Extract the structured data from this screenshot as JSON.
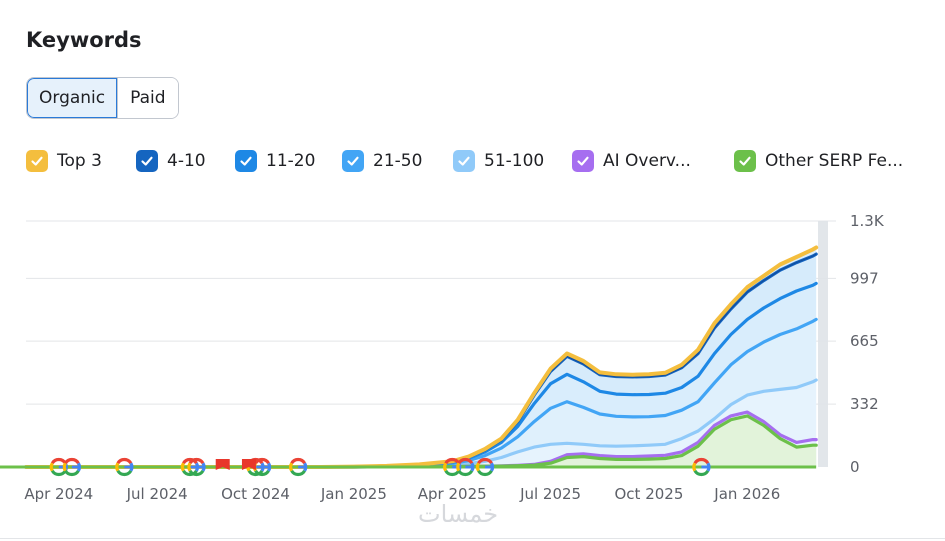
{
  "header": {
    "title": "Keywords"
  },
  "tabs": [
    {
      "label": "Organic",
      "active": true
    },
    {
      "label": "Paid",
      "active": false
    }
  ],
  "legend": [
    {
      "label": "Top 3",
      "color": "#f4be3e",
      "checked": true
    },
    {
      "label": "4-10",
      "color": "#1565c0",
      "checked": true
    },
    {
      "label": "11-20",
      "color": "#1e88e5",
      "checked": true
    },
    {
      "label": "21-50",
      "color": "#42a5f5",
      "checked": true
    },
    {
      "label": "51-100",
      "color": "#90caf9",
      "checked": true
    },
    {
      "label": "AI Overv...",
      "color": "#a66ef0",
      "checked": true
    },
    {
      "label": "Other SERP Fe...",
      "color": "#6cc04a",
      "checked": true
    }
  ],
  "watermark": "خمسات",
  "chart_data": {
    "type": "area",
    "title": "Keywords",
    "y_ticks": [
      0,
      332,
      665,
      997,
      1300
    ],
    "y_tick_labels": [
      "0",
      "332",
      "665",
      "997",
      "1.3K"
    ],
    "ylim": [
      0,
      1300
    ],
    "x_range": [
      0,
      24.4
    ],
    "x_ticks": [
      1,
      4,
      7,
      10,
      13,
      16,
      19,
      22
    ],
    "x_tick_labels": [
      "Apr 2024",
      "Jul 2024",
      "Oct 2024",
      "Jan 2025",
      "Apr 2025",
      "Jul 2025",
      "Oct 2025",
      "Jan 2026"
    ],
    "x": [
      0,
      1,
      2,
      3,
      4,
      5,
      6,
      7,
      8,
      9,
      10,
      11,
      12,
      13,
      13.5,
      14,
      14.5,
      15,
      15.5,
      16,
      16.5,
      17,
      17.5,
      18,
      18.5,
      19,
      19.5,
      20,
      20.5,
      21,
      21.5,
      22,
      22.5,
      23,
      23.5,
      24,
      24.1
    ],
    "series": [
      {
        "name": "Top 3",
        "color": "#f4be3e",
        "values": [
          0,
          0,
          0,
          0,
          0,
          0,
          0,
          0,
          0,
          0,
          2,
          6,
          14,
          30,
          55,
          95,
          150,
          250,
          390,
          520,
          600,
          560,
          500,
          490,
          488,
          490,
          498,
          540,
          620,
          760,
          860,
          950,
          1010,
          1070,
          1110,
          1150,
          1160
        ]
      },
      {
        "name": "4-10",
        "color": "#1565c0",
        "values": [
          0,
          0,
          0,
          0,
          0,
          0,
          0,
          0,
          0,
          0,
          2,
          6,
          13,
          28,
          52,
          90,
          145,
          240,
          380,
          505,
          585,
          545,
          488,
          478,
          476,
          478,
          486,
          525,
          600,
          735,
          835,
          925,
          985,
          1040,
          1080,
          1115,
          1125
        ]
      },
      {
        "name": "11-20",
        "color": "#1e88e5",
        "values": [
          0,
          0,
          0,
          0,
          0,
          0,
          0,
          0,
          0,
          0,
          2,
          5,
          11,
          24,
          46,
          80,
          130,
          215,
          335,
          440,
          490,
          450,
          400,
          385,
          382,
          383,
          390,
          420,
          480,
          600,
          700,
          780,
          840,
          890,
          930,
          960,
          970
        ]
      },
      {
        "name": "21-50",
        "color": "#42a5f5",
        "values": [
          0,
          0,
          0,
          0,
          0,
          0,
          0,
          0,
          0,
          0,
          1,
          4,
          9,
          18,
          34,
          60,
          100,
          160,
          240,
          310,
          345,
          315,
          280,
          268,
          265,
          266,
          272,
          300,
          345,
          445,
          540,
          610,
          660,
          700,
          730,
          770,
          780
        ]
      },
      {
        "name": "51-100",
        "color": "#90caf9",
        "values": [
          0,
          0,
          0,
          0,
          0,
          0,
          0,
          0,
          0,
          0,
          1,
          2,
          5,
          10,
          18,
          30,
          50,
          80,
          105,
          120,
          125,
          120,
          112,
          110,
          112,
          115,
          120,
          150,
          190,
          255,
          330,
          380,
          400,
          410,
          420,
          450,
          460
        ]
      },
      {
        "name": "AI Overv...",
        "color": "#a66ef0",
        "values": [
          0,
          0,
          0,
          0,
          0,
          0,
          0,
          0,
          0,
          0,
          0,
          1,
          1,
          2,
          3,
          4,
          6,
          9,
          14,
          30,
          65,
          70,
          60,
          55,
          55,
          58,
          62,
          80,
          130,
          220,
          270,
          290,
          240,
          170,
          130,
          145,
          145
        ]
      },
      {
        "name": "Other SERP Fe...",
        "color": "#6cc04a",
        "values": [
          0,
          0,
          0,
          0,
          0,
          0,
          0,
          0,
          0,
          0,
          0,
          1,
          1,
          2,
          3,
          4,
          5,
          7,
          10,
          20,
          50,
          55,
          45,
          40,
          40,
          42,
          45,
          60,
          110,
          200,
          250,
          270,
          220,
          150,
          105,
          115,
          115
        ]
      }
    ],
    "google_update_markers": [
      1.0,
      1.4,
      3.0,
      5.0,
      5.2,
      7.0,
      7.2,
      8.3,
      13.0,
      13.4,
      14.0,
      20.6
    ],
    "note_markers": [
      6.0,
      6.8
    ],
    "grid": true,
    "legend_position": "top"
  }
}
